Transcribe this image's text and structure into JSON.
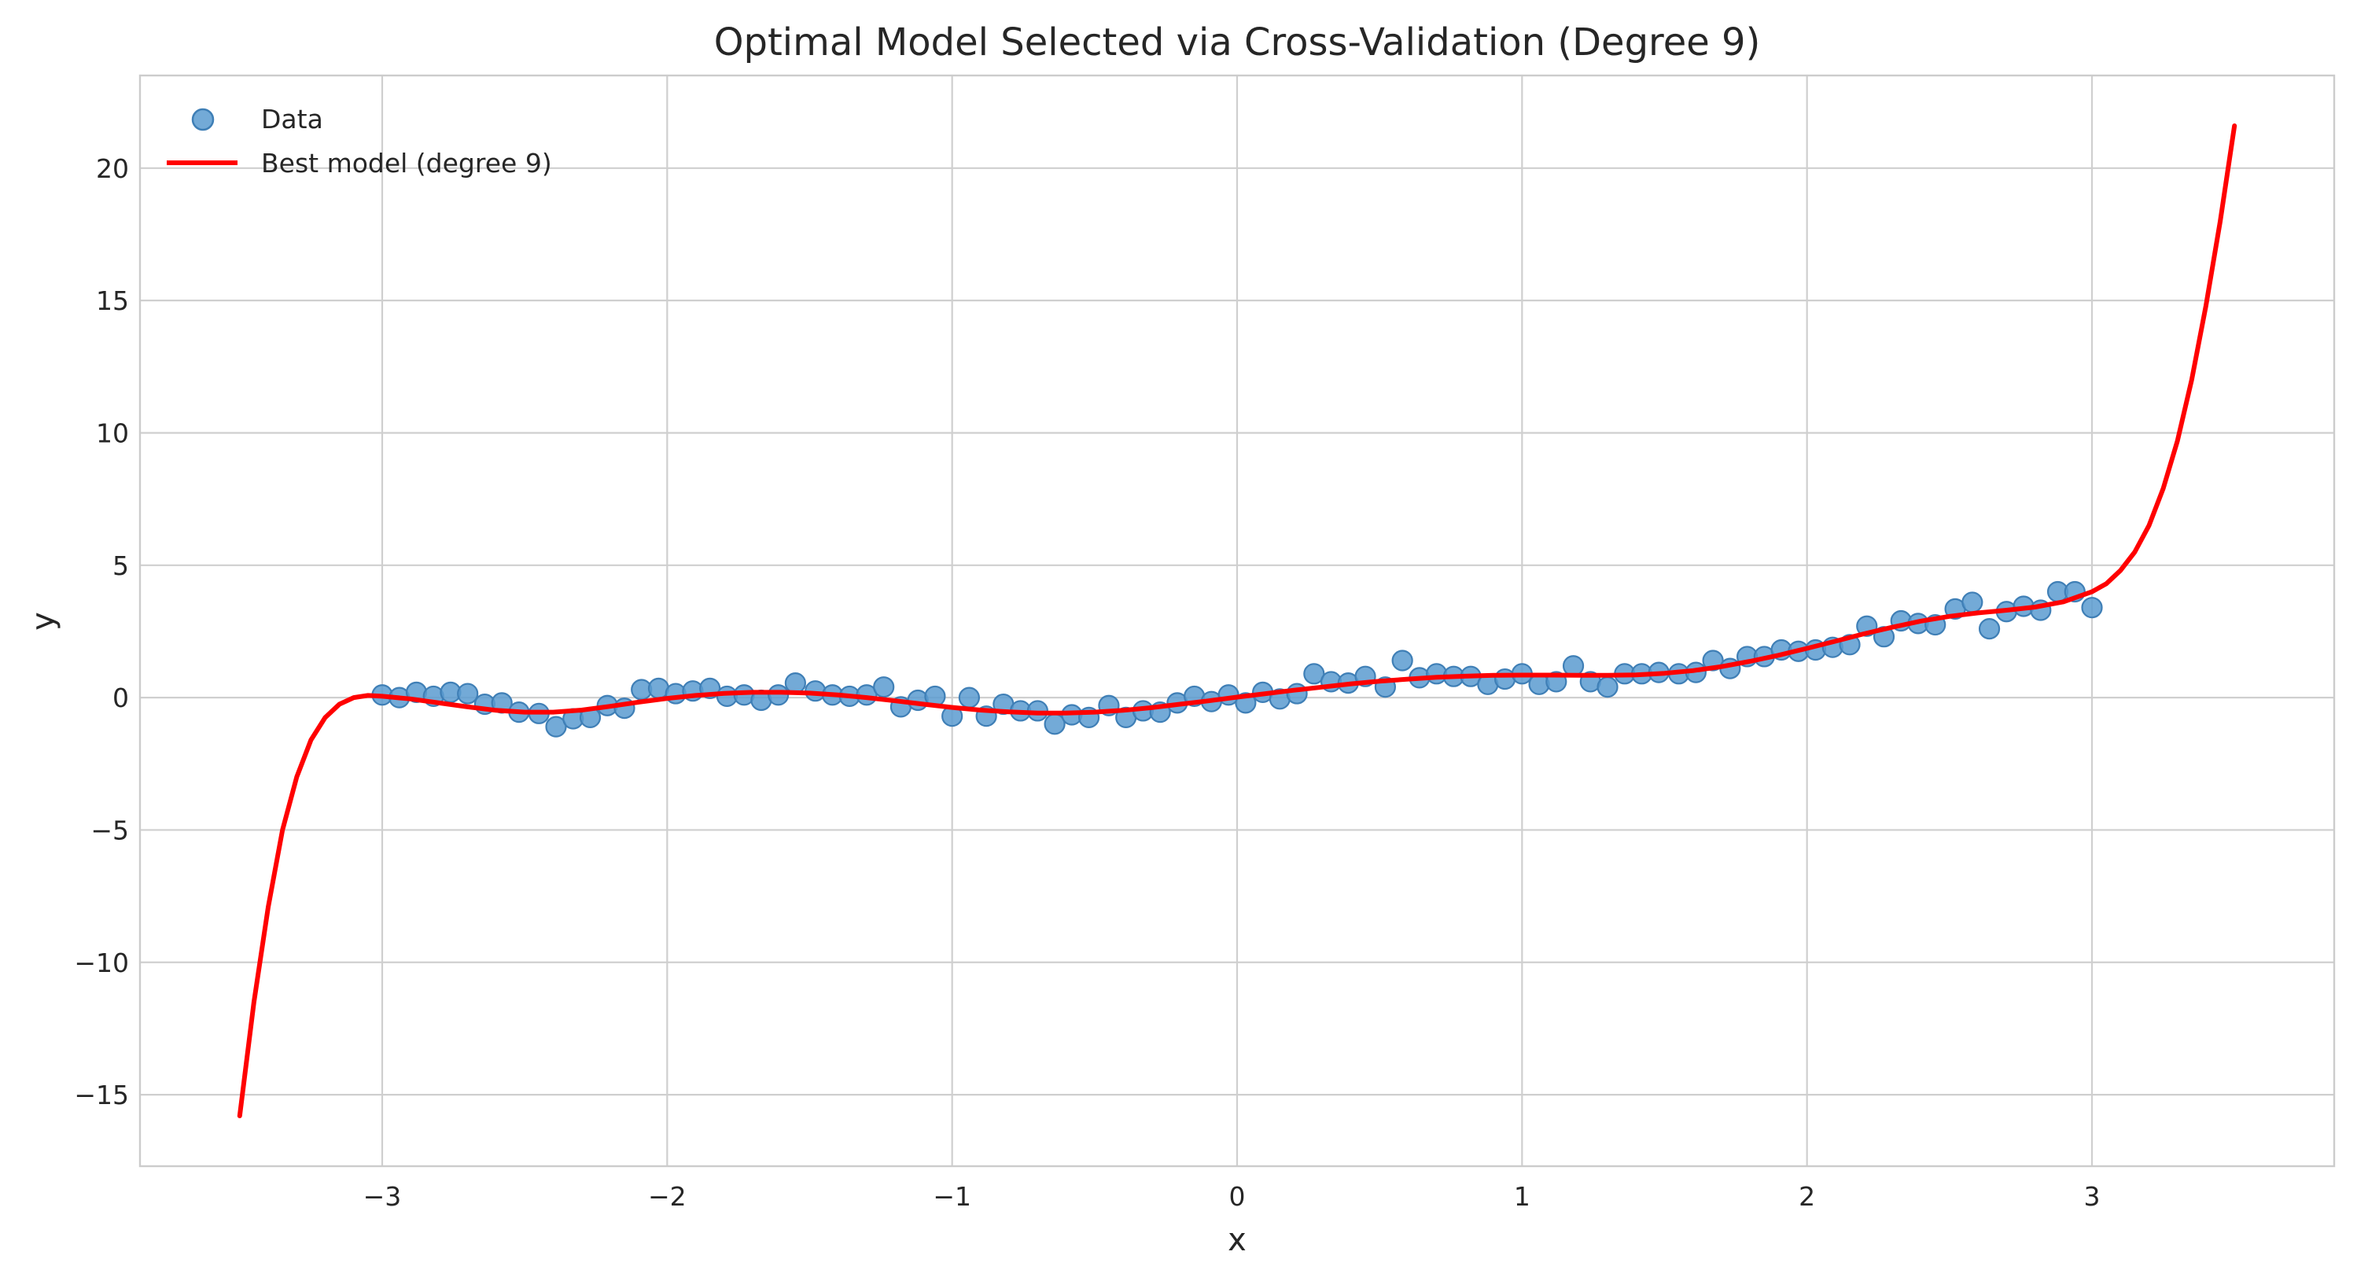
{
  "chart_data": {
    "type": "scatter",
    "title": "Optimal Model Selected via Cross-Validation (Degree 9)",
    "xlabel": "x",
    "ylabel": "y",
    "xlim": [
      -3.85,
      3.85
    ],
    "ylim": [
      -17.7,
      23.5
    ],
    "grid": true,
    "legend_placement": "top-left",
    "x_ticks": [
      -3,
      -2,
      -1,
      0,
      1,
      2,
      3
    ],
    "x_tick_labels": [
      "−3",
      "−2",
      "−1",
      "0",
      "1",
      "2",
      "3"
    ],
    "y_ticks": [
      -15,
      -10,
      -5,
      0,
      5,
      10,
      15,
      20
    ],
    "y_tick_labels": [
      "−15",
      "−10",
      "−5",
      "0",
      "5",
      "10",
      "15",
      "20"
    ],
    "colors": {
      "data": "#5b9bd0",
      "data_edge": "#3f7fb6",
      "model": "#ff0000"
    },
    "series": [
      {
        "name": "Data",
        "kind": "scatter",
        "points": [
          [
            -3.0,
            0.1
          ],
          [
            -2.94,
            0.0
          ],
          [
            -2.88,
            0.2
          ],
          [
            -2.82,
            0.05
          ],
          [
            -2.76,
            0.2
          ],
          [
            -2.7,
            0.15
          ],
          [
            -2.64,
            -0.25
          ],
          [
            -2.58,
            -0.2
          ],
          [
            -2.52,
            -0.55
          ],
          [
            -2.45,
            -0.6
          ],
          [
            -2.39,
            -1.1
          ],
          [
            -2.33,
            -0.8
          ],
          [
            -2.27,
            -0.75
          ],
          [
            -2.21,
            -0.3
          ],
          [
            -2.15,
            -0.4
          ],
          [
            -2.09,
            0.3
          ],
          [
            -2.03,
            0.35
          ],
          [
            -1.97,
            0.15
          ],
          [
            -1.91,
            0.25
          ],
          [
            -1.85,
            0.35
          ],
          [
            -1.79,
            0.05
          ],
          [
            -1.73,
            0.1
          ],
          [
            -1.67,
            -0.1
          ],
          [
            -1.61,
            0.1
          ],
          [
            -1.55,
            0.55
          ],
          [
            -1.48,
            0.25
          ],
          [
            -1.42,
            0.1
          ],
          [
            -1.36,
            0.05
          ],
          [
            -1.3,
            0.1
          ],
          [
            -1.24,
            0.4
          ],
          [
            -1.18,
            -0.35
          ],
          [
            -1.12,
            -0.1
          ],
          [
            -1.06,
            0.05
          ],
          [
            -1.0,
            -0.7
          ],
          [
            -0.94,
            0.0
          ],
          [
            -0.88,
            -0.7
          ],
          [
            -0.82,
            -0.25
          ],
          [
            -0.76,
            -0.5
          ],
          [
            -0.7,
            -0.5
          ],
          [
            -0.64,
            -1.0
          ],
          [
            -0.58,
            -0.65
          ],
          [
            -0.52,
            -0.75
          ],
          [
            -0.45,
            -0.3
          ],
          [
            -0.39,
            -0.75
          ],
          [
            -0.33,
            -0.5
          ],
          [
            -0.27,
            -0.55
          ],
          [
            -0.21,
            -0.2
          ],
          [
            -0.15,
            0.05
          ],
          [
            -0.09,
            -0.15
          ],
          [
            -0.03,
            0.1
          ],
          [
            0.03,
            -0.2
          ],
          [
            0.09,
            0.2
          ],
          [
            0.15,
            -0.05
          ],
          [
            0.21,
            0.15
          ],
          [
            0.27,
            0.9
          ],
          [
            0.33,
            0.6
          ],
          [
            0.39,
            0.55
          ],
          [
            0.45,
            0.8
          ],
          [
            0.52,
            0.4
          ],
          [
            0.58,
            1.4
          ],
          [
            0.64,
            0.75
          ],
          [
            0.7,
            0.9
          ],
          [
            0.76,
            0.8
          ],
          [
            0.82,
            0.8
          ],
          [
            0.88,
            0.5
          ],
          [
            0.94,
            0.7
          ],
          [
            1.0,
            0.9
          ],
          [
            1.06,
            0.5
          ],
          [
            1.12,
            0.6
          ],
          [
            1.18,
            1.2
          ],
          [
            1.24,
            0.6
          ],
          [
            1.3,
            0.4
          ],
          [
            1.36,
            0.9
          ],
          [
            1.42,
            0.9
          ],
          [
            1.48,
            0.95
          ],
          [
            1.55,
            0.9
          ],
          [
            1.61,
            0.95
          ],
          [
            1.67,
            1.4
          ],
          [
            1.73,
            1.1
          ],
          [
            1.79,
            1.55
          ],
          [
            1.85,
            1.55
          ],
          [
            1.91,
            1.8
          ],
          [
            1.97,
            1.75
          ],
          [
            2.03,
            1.8
          ],
          [
            2.09,
            1.9
          ],
          [
            2.15,
            2.0
          ],
          [
            2.21,
            2.7
          ],
          [
            2.27,
            2.3
          ],
          [
            2.33,
            2.9
          ],
          [
            2.39,
            2.8
          ],
          [
            2.45,
            2.75
          ],
          [
            2.52,
            3.35
          ],
          [
            2.58,
            3.6
          ],
          [
            2.64,
            2.6
          ],
          [
            2.7,
            3.25
          ],
          [
            2.76,
            3.45
          ],
          [
            2.82,
            3.3
          ],
          [
            2.88,
            4.0
          ],
          [
            2.94,
            4.0
          ],
          [
            3.0,
            3.4
          ]
        ]
      },
      {
        "name": "Best model (degree 9)",
        "kind": "line",
        "points": [
          [
            -3.5,
            -15.8
          ],
          [
            -3.45,
            -11.5
          ],
          [
            -3.4,
            -7.9
          ],
          [
            -3.35,
            -5.0
          ],
          [
            -3.3,
            -3.0
          ],
          [
            -3.25,
            -1.6
          ],
          [
            -3.2,
            -0.75
          ],
          [
            -3.15,
            -0.25
          ],
          [
            -3.1,
            0.0
          ],
          [
            -3.05,
            0.08
          ],
          [
            -3.0,
            0.05
          ],
          [
            -2.9,
            -0.05
          ],
          [
            -2.8,
            -0.2
          ],
          [
            -2.7,
            -0.35
          ],
          [
            -2.6,
            -0.48
          ],
          [
            -2.5,
            -0.55
          ],
          [
            -2.4,
            -0.55
          ],
          [
            -2.3,
            -0.47
          ],
          [
            -2.2,
            -0.33
          ],
          [
            -2.1,
            -0.17
          ],
          [
            -2.0,
            -0.03
          ],
          [
            -1.9,
            0.08
          ],
          [
            -1.8,
            0.16
          ],
          [
            -1.7,
            0.2
          ],
          [
            -1.6,
            0.2
          ],
          [
            -1.5,
            0.17
          ],
          [
            -1.4,
            0.1
          ],
          [
            -1.3,
            0.0
          ],
          [
            -1.2,
            -0.12
          ],
          [
            -1.1,
            -0.25
          ],
          [
            -1.0,
            -0.37
          ],
          [
            -0.9,
            -0.47
          ],
          [
            -0.8,
            -0.54
          ],
          [
            -0.7,
            -0.58
          ],
          [
            -0.6,
            -0.58
          ],
          [
            -0.5,
            -0.55
          ],
          [
            -0.4,
            -0.48
          ],
          [
            -0.3,
            -0.38
          ],
          [
            -0.2,
            -0.25
          ],
          [
            -0.1,
            -0.12
          ],
          [
            0.0,
            0.02
          ],
          [
            0.1,
            0.15
          ],
          [
            0.2,
            0.28
          ],
          [
            0.3,
            0.4
          ],
          [
            0.4,
            0.52
          ],
          [
            0.5,
            0.62
          ],
          [
            0.6,
            0.7
          ],
          [
            0.7,
            0.77
          ],
          [
            0.8,
            0.81
          ],
          [
            0.9,
            0.84
          ],
          [
            1.0,
            0.85
          ],
          [
            1.1,
            0.85
          ],
          [
            1.2,
            0.84
          ],
          [
            1.3,
            0.84
          ],
          [
            1.4,
            0.86
          ],
          [
            1.5,
            0.92
          ],
          [
            1.6,
            1.02
          ],
          [
            1.7,
            1.17
          ],
          [
            1.8,
            1.37
          ],
          [
            1.9,
            1.6
          ],
          [
            2.0,
            1.86
          ],
          [
            2.1,
            2.13
          ],
          [
            2.2,
            2.41
          ],
          [
            2.3,
            2.66
          ],
          [
            2.4,
            2.89
          ],
          [
            2.5,
            3.07
          ],
          [
            2.6,
            3.2
          ],
          [
            2.7,
            3.3
          ],
          [
            2.8,
            3.42
          ],
          [
            2.9,
            3.62
          ],
          [
            3.0,
            4.0
          ],
          [
            3.05,
            4.3
          ],
          [
            3.1,
            4.8
          ],
          [
            3.15,
            5.5
          ],
          [
            3.2,
            6.5
          ],
          [
            3.25,
            7.9
          ],
          [
            3.3,
            9.7
          ],
          [
            3.35,
            12.0
          ],
          [
            3.4,
            14.8
          ],
          [
            3.45,
            18.0
          ],
          [
            3.5,
            21.6
          ]
        ]
      }
    ]
  }
}
